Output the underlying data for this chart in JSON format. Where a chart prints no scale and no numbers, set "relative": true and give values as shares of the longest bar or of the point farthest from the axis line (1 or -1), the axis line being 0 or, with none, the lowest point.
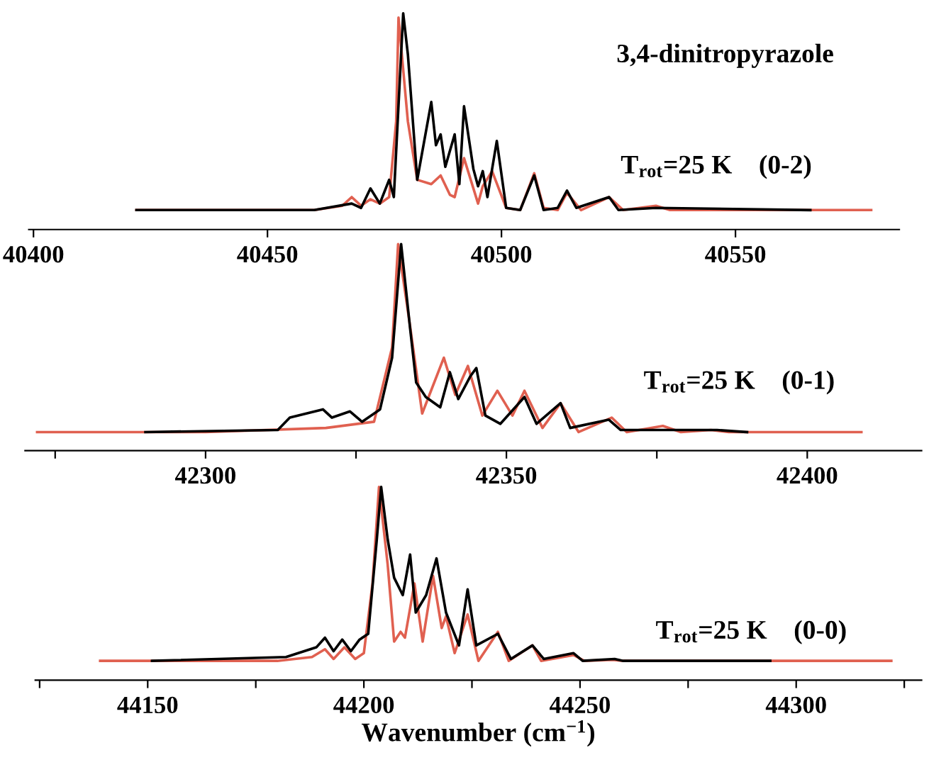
{
  "chart_data": [
    {
      "type": "line",
      "title": "3,4-dinitropyrazole",
      "relative": true,
      "tick_labels": "x",
      "annotations": [
        "T$_{rot}$=25 K    (0-2)"
      ],
      "xlim": [
        40399,
        40585
      ],
      "xticks": [
        40400,
        40450,
        40500,
        40550
      ],
      "series": [
        {
          "color": "#e06050",
          "x": [
            40422,
            40460,
            40466,
            40468,
            40470,
            40472,
            40474,
            40476,
            40477.5,
            40478,
            40480,
            40482,
            40485,
            40487,
            40489,
            40490,
            40492,
            40495,
            40496,
            40498,
            40501,
            40504,
            40507,
            40509,
            40512,
            40514,
            40517,
            40523,
            40526,
            40533,
            40536,
            40579
          ],
          "values": [
            0.09,
            0.09,
            0.11,
            0.15,
            0.11,
            0.14,
            0.12,
            0.15,
            0.5,
            0.98,
            0.5,
            0.23,
            0.21,
            0.25,
            0.16,
            0.15,
            0.33,
            0.12,
            0.2,
            0.27,
            0.1,
            0.09,
            0.26,
            0.1,
            0.09,
            0.17,
            0.09,
            0.15,
            0.09,
            0.11,
            0.09,
            0.09
          ]
        },
        {
          "color": "#000000",
          "x": [
            40422,
            40460,
            40468,
            40470,
            40472,
            40474,
            40476,
            40477,
            40479,
            40480,
            40482,
            40485,
            40486,
            40487,
            40488,
            40490,
            40491,
            40492,
            40494,
            40495,
            40496,
            40497,
            40499,
            40501,
            40504,
            40507,
            40509,
            40512,
            40514,
            40516,
            40523,
            40525,
            40533,
            40566
          ],
          "values": [
            0.09,
            0.09,
            0.12,
            0.1,
            0.19,
            0.12,
            0.23,
            0.15,
            1.0,
            0.81,
            0.23,
            0.59,
            0.39,
            0.44,
            0.29,
            0.44,
            0.21,
            0.57,
            0.28,
            0.2,
            0.27,
            0.15,
            0.41,
            0.1,
            0.09,
            0.25,
            0.09,
            0.1,
            0.18,
            0.1,
            0.15,
            0.09,
            0.1,
            0.09
          ]
        }
      ]
    },
    {
      "type": "line",
      "relative": true,
      "tick_labels": "x",
      "annotations": [
        "T$_{rot}$=25 K    (0-1)"
      ],
      "xlim": [
        42270,
        42419
      ],
      "xticks": [
        {
          "value": 42275,
          "label": null
        },
        42300,
        {
          "value": 42325,
          "label": null
        },
        42350,
        {
          "value": 42375,
          "label": null
        },
        42400
      ],
      "series": [
        {
          "color": "#e06050",
          "x": [
            42272,
            42300,
            42320,
            42328,
            42331,
            42332,
            42334,
            42336,
            42339.6,
            42341.5,
            42343.6,
            42346,
            42348.5,
            42351,
            42353,
            42356,
            42359,
            42362,
            42367.5,
            42370,
            42376,
            42379,
            42384,
            42387,
            42409
          ],
          "values": [
            0.09,
            0.09,
            0.11,
            0.14,
            0.5,
            1.0,
            0.6,
            0.18,
            0.45,
            0.27,
            0.41,
            0.17,
            0.29,
            0.17,
            0.29,
            0.11,
            0.23,
            0.09,
            0.16,
            0.09,
            0.12,
            0.09,
            0.1,
            0.09,
            0.09
          ]
        },
        {
          "color": "#000000",
          "x": [
            42290,
            42312,
            42314,
            42319.5,
            42321,
            42324,
            42326,
            42329,
            42331,
            42332.5,
            42334,
            42335,
            42336.6,
            42339,
            42340.6,
            42342,
            42344,
            42345,
            42346.5,
            42349,
            42353,
            42355,
            42359,
            42360.6,
            42367,
            42369,
            42376,
            42385,
            42390
          ],
          "values": [
            0.09,
            0.1,
            0.16,
            0.2,
            0.16,
            0.19,
            0.14,
            0.2,
            0.45,
            1.0,
            0.59,
            0.33,
            0.26,
            0.21,
            0.38,
            0.25,
            0.36,
            0.4,
            0.17,
            0.13,
            0.26,
            0.13,
            0.23,
            0.11,
            0.15,
            0.1,
            0.1,
            0.1,
            0.09
          ]
        }
      ]
    },
    {
      "type": "line",
      "relative": true,
      "tick_labels": "x",
      "xlabel": "Wavenumber (cm$^{−1}$)",
      "annotations": [
        "T$_{rot}$=25 K    (0-0)"
      ],
      "xlim": [
        44124,
        44329
      ],
      "xticks": [
        {
          "value": 44125,
          "label": null
        },
        44150,
        {
          "value": 44175,
          "label": null
        },
        44200,
        {
          "value": 44225,
          "label": null
        },
        44250,
        {
          "value": 44275,
          "label": null
        },
        44300,
        {
          "value": 44325,
          "label": null
        }
      ],
      "series": [
        {
          "color": "#e06050",
          "x": [
            44139,
            44180,
            44188,
            44191,
            44193,
            44195.5,
            44198,
            44200,
            44202,
            44203.5,
            44205.5,
            44207,
            44208.5,
            44209.5,
            44211.7,
            44213.6,
            44216,
            44218,
            44219,
            44221,
            44224,
            44226.5,
            44231,
            44233.5,
            44239,
            44241,
            44248.5,
            44251,
            44257.5,
            44260,
            44322
          ],
          "values": [
            0.1,
            0.1,
            0.12,
            0.16,
            0.11,
            0.17,
            0.11,
            0.14,
            0.5,
            1.0,
            0.6,
            0.2,
            0.25,
            0.22,
            0.5,
            0.2,
            0.54,
            0.27,
            0.33,
            0.14,
            0.34,
            0.1,
            0.25,
            0.1,
            0.18,
            0.1,
            0.13,
            0.1,
            0.105,
            0.1,
            0.1
          ]
        },
        {
          "color": "#000000",
          "x": [
            44151,
            44182,
            44189,
            44191,
            44193,
            44195,
            44197,
            44199,
            44201,
            44203,
            44204,
            44205.5,
            44207,
            44209,
            44210.7,
            44212,
            44214.4,
            44216.8,
            44219,
            44222,
            44224,
            44226,
            44231,
            44234,
            44239,
            44241.6,
            44248.5,
            44250.6,
            44258,
            44260,
            44294
          ],
          "values": [
            0.1,
            0.12,
            0.17,
            0.22,
            0.15,
            0.21,
            0.15,
            0.21,
            0.24,
            0.73,
            1.0,
            0.73,
            0.53,
            0.44,
            0.65,
            0.35,
            0.44,
            0.63,
            0.35,
            0.18,
            0.47,
            0.18,
            0.24,
            0.11,
            0.18,
            0.11,
            0.14,
            0.1,
            0.11,
            0.1,
            0.1
          ]
        }
      ]
    }
  ]
}
